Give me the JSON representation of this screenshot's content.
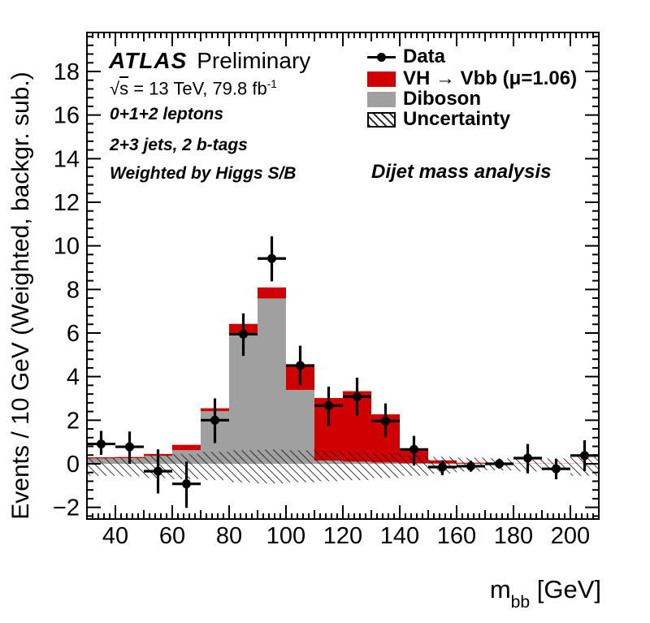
{
  "figure": {
    "background": "#ffffff",
    "info": {
      "experiment": "ATLAS",
      "label": "Preliminary",
      "lumi": {
        "radical": "√",
        "s": "s",
        "rest": " = 13 TeV, 79.8 fb",
        "exp": "-1"
      },
      "selection1": "0+1+2 leptons",
      "selection2": "2+3 jets, 2 b-tags",
      "selection3": "Weighted by Higgs S/B",
      "analysis": "Dijet mass analysis"
    },
    "legend": {
      "position": "top-right",
      "items": [
        {
          "label": "Data",
          "type": "marker"
        },
        {
          "label": "VH → Vbb (μ=1.06)",
          "type": "fill",
          "color": "#d10000"
        },
        {
          "label": "Diboson",
          "type": "fill",
          "color": "#a0a0a0"
        },
        {
          "label": "Uncertainty",
          "type": "hatch"
        }
      ]
    },
    "axes": {
      "x_title": {
        "m": "m",
        "sub": "bb",
        "rest": " [GeV]"
      },
      "y_title": "Events / 10 GeV (Weighted, backgr. sub.)"
    }
  },
  "chart_data": {
    "type": "bar",
    "subtype": "stacked-histogram-with-data-points",
    "title": "",
    "xlabel": "m_bb [GeV]",
    "ylabel": "Events / 10 GeV (Weighted, backgr. sub.)",
    "grid": false,
    "legend_position": "top-right",
    "x_range": [
      30,
      210
    ],
    "y_range": [
      -2.5,
      19.8
    ],
    "bin_width": 10,
    "bin_edges": [
      30,
      40,
      50,
      60,
      70,
      80,
      90,
      100,
      110,
      120,
      130,
      140,
      150,
      160,
      170,
      180,
      190,
      200,
      210
    ],
    "series": [
      {
        "name": "Diboson",
        "color": "#a0a0a0",
        "values": [
          0.25,
          0.26,
          0.37,
          0.63,
          2.42,
          5.96,
          7.59,
          3.39,
          0.15,
          0.1,
          0.06,
          0.03,
          0.02,
          0.01,
          0.0,
          0.0,
          0.0,
          0.0
        ]
      },
      {
        "name": "VH → Vbb (μ=1.06)",
        "color": "#d10000",
        "values": [
          0.05,
          0.05,
          0.08,
          0.24,
          0.13,
          0.46,
          0.5,
          1.15,
          2.87,
          3.23,
          2.21,
          0.59,
          0.14,
          0.04,
          0.02,
          0.01,
          0.01,
          0.01
        ]
      }
    ],
    "uncertainty_band": [
      [
        -0.55,
        0.28
      ],
      [
        -0.58,
        0.3
      ],
      [
        -0.65,
        0.38
      ],
      [
        -0.7,
        0.45
      ],
      [
        -0.75,
        0.55
      ],
      [
        -0.85,
        0.62
      ],
      [
        -0.9,
        0.65
      ],
      [
        -0.85,
        0.62
      ],
      [
        -0.8,
        0.6
      ],
      [
        -0.75,
        0.55
      ],
      [
        -0.65,
        0.5
      ],
      [
        -0.55,
        0.4
      ],
      [
        -0.45,
        0.32
      ],
      [
        -0.35,
        0.28
      ],
      [
        -0.3,
        0.25
      ],
      [
        -0.35,
        0.28
      ],
      [
        -0.3,
        0.25
      ],
      [
        -0.55,
        0.42
      ]
    ],
    "data_points": {
      "name": "Data",
      "x": [
        35,
        45,
        55,
        65,
        75,
        85,
        95,
        105,
        115,
        125,
        135,
        145,
        155,
        165,
        175,
        185,
        195,
        205
      ],
      "y": [
        0.91,
        0.78,
        -0.34,
        -0.92,
        2.0,
        5.95,
        9.42,
        4.51,
        2.67,
        3.08,
        1.96,
        0.66,
        -0.15,
        -0.11,
        0.0,
        0.26,
        -0.23,
        0.38
      ],
      "err_up": [
        0.6,
        0.7,
        1.0,
        1.02,
        1.0,
        0.95,
        1.02,
        0.91,
        0.87,
        0.87,
        0.81,
        0.62,
        0.31,
        0.25,
        0.22,
        0.65,
        0.45,
        0.7
      ],
      "err_down": [
        0.5,
        0.78,
        1.02,
        1.1,
        1.05,
        1.0,
        1.05,
        0.91,
        0.93,
        0.87,
        0.74,
        0.74,
        0.37,
        0.25,
        0.22,
        0.7,
        0.48,
        0.71
      ]
    },
    "x_tick_labels": [
      {
        "v": 40,
        "label": "40"
      },
      {
        "v": 60,
        "label": "60"
      },
      {
        "v": 80,
        "label": "80"
      },
      {
        "v": 100,
        "label": "100"
      },
      {
        "v": 120,
        "label": "120"
      },
      {
        "v": 140,
        "label": "140"
      },
      {
        "v": 160,
        "label": "160"
      },
      {
        "v": 180,
        "label": "180"
      },
      {
        "v": 200,
        "label": "200"
      }
    ],
    "y_tick_labels": [
      {
        "v": -2,
        "label": "−2"
      },
      {
        "v": 0,
        "label": "0"
      },
      {
        "v": 2,
        "label": "2"
      },
      {
        "v": 4,
        "label": "4"
      },
      {
        "v": 6,
        "label": "6"
      },
      {
        "v": 8,
        "label": "8"
      },
      {
        "v": 10,
        "label": "10"
      },
      {
        "v": 12,
        "label": "12"
      },
      {
        "v": 14,
        "label": "14"
      },
      {
        "v": 16,
        "label": "16"
      },
      {
        "v": 18,
        "label": "18"
      }
    ],
    "annotations": [
      "ATLAS Preliminary",
      "√s = 13 TeV, 79.8 fb⁻¹",
      "0+1+2 leptons",
      "2+3 jets, 2 b-tags",
      "Weighted by Higgs S/B",
      "Dijet mass analysis"
    ]
  }
}
